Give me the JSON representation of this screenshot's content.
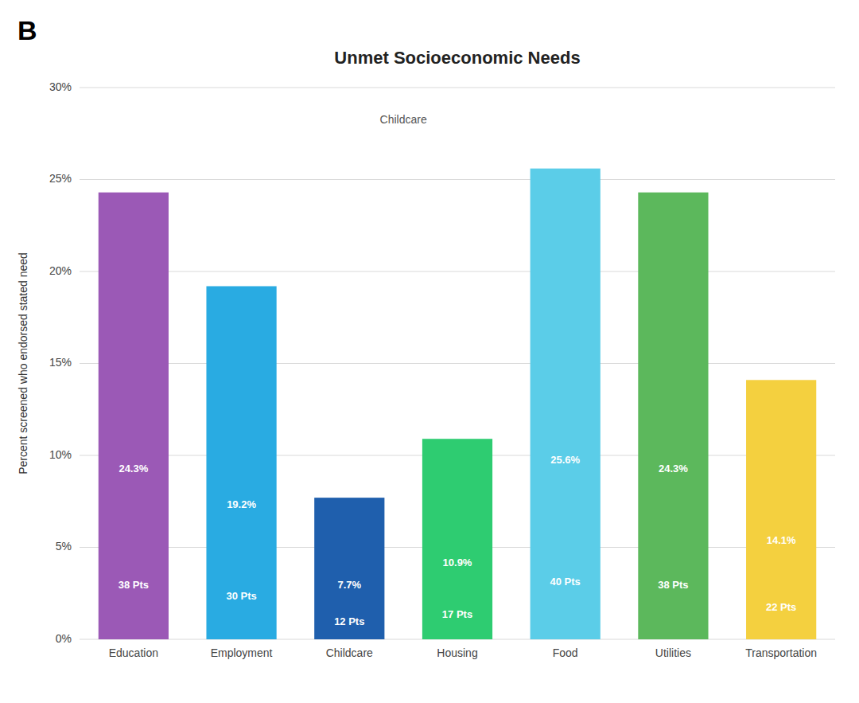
{
  "chart_data": {
    "type": "bar",
    "title": "Unmet Socioeconomic Needs",
    "panel_label": "B",
    "categories": [
      "Education",
      "Employment",
      "Childcare",
      "Housing",
      "Food",
      "Utilities",
      "Transportation"
    ],
    "values": [
      24.3,
      19.2,
      7.7,
      10.9,
      25.6,
      24.3,
      14.1
    ],
    "value_labels": [
      "24.3%",
      "19.2%",
      "7.7%",
      "10.9%",
      "25.6%",
      "24.3%",
      "14.1%"
    ],
    "pts": [
      38,
      30,
      12,
      17,
      40,
      38,
      22
    ],
    "pts_labels": [
      "38 Pts",
      "30 Pts",
      "12 Pts",
      "17 Pts",
      "40 Pts",
      "38 Pts",
      "22 Pts"
    ],
    "colors": [
      "#9B59B6",
      "#29ABE2",
      "#1F5FAD",
      "#2ECC71",
      "#5BCDE8",
      "#5CB85C",
      "#F4D03F"
    ],
    "ylabel": "Percent screened who endorsed stated need",
    "ylim": [
      0,
      30
    ],
    "yticks": [
      {
        "value": 0,
        "label": "0%"
      },
      {
        "value": 5,
        "label": "5%"
      },
      {
        "value": 10,
        "label": "10%"
      },
      {
        "value": 15,
        "label": "15%"
      },
      {
        "value": 20,
        "label": "20%"
      },
      {
        "value": 25,
        "label": "25%"
      },
      {
        "value": 30,
        "label": "30%"
      }
    ],
    "annotation": {
      "text": "Childcare",
      "x": 2.5,
      "y": 28.2
    },
    "grid": true,
    "data_labels": true
  }
}
